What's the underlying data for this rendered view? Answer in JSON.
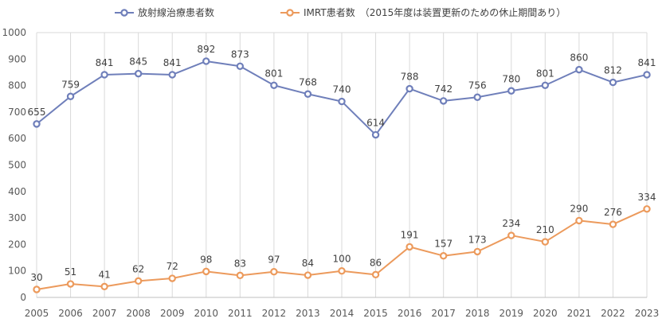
{
  "chart_data": {
    "type": "line",
    "x": [
      "2005",
      "2006",
      "2007",
      "2008",
      "2009",
      "2010",
      "2011",
      "2012",
      "2013",
      "2014",
      "2015",
      "2016",
      "2017",
      "2018",
      "2019",
      "2020",
      "2021",
      "2022",
      "2023"
    ],
    "series": [
      {
        "name": "放射線治療患者数",
        "color": "#6f7fba",
        "values": [
          655,
          759,
          841,
          845,
          841,
          892,
          873,
          801,
          768,
          740,
          614,
          788,
          742,
          756,
          780,
          801,
          860,
          812,
          841
        ]
      },
      {
        "name": "IMRT患者数　（2015年度は装置更新のための休止期間あり）",
        "color": "#ec9a5c",
        "values": [
          30,
          51,
          41,
          62,
          72,
          98,
          83,
          97,
          84,
          100,
          86,
          191,
          157,
          173,
          234,
          210,
          290,
          276,
          334
        ]
      }
    ],
    "ylim": [
      0,
      1000
    ],
    "yticks": [
      0,
      100,
      200,
      300,
      400,
      500,
      600,
      700,
      800,
      900,
      1000
    ],
    "grid": "vertical",
    "legend": "top-center",
    "gridColor": "#d9d9d9"
  }
}
